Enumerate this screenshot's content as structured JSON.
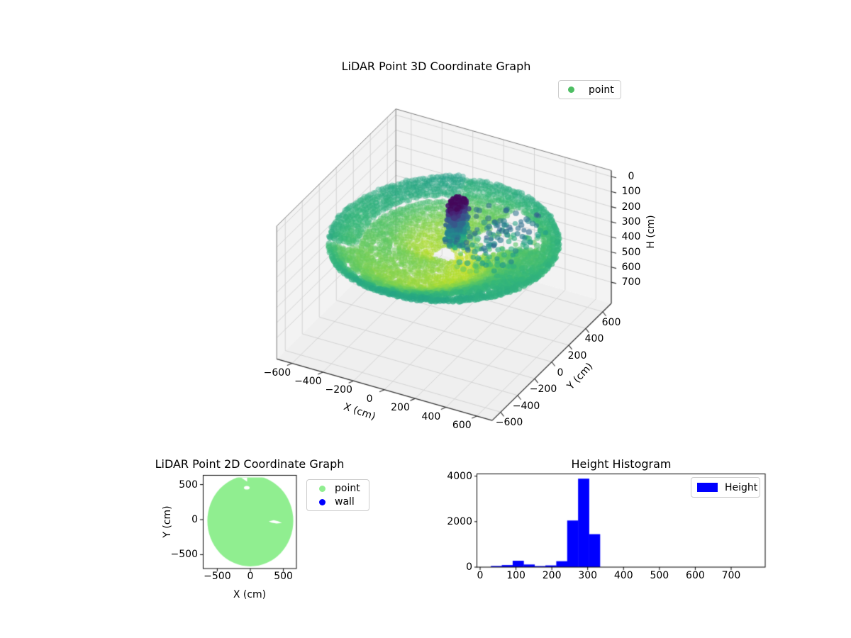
{
  "figure": {
    "background": "#ffffff"
  },
  "chart_data": [
    {
      "type": "scatter",
      "projection": "3d",
      "title": "LiDAR Point 3D Coordinate Graph",
      "xlabel": "X (cm)",
      "ylabel": "Y (cm)",
      "zlabel": "H (cm)",
      "legend": [
        {
          "label": "point",
          "color": "#4dbe63"
        }
      ],
      "colormap": "viridis",
      "h_axis_inverted": true,
      "xlim": [
        -700,
        700
      ],
      "ylim": [
        -700,
        700
      ],
      "zlim_top_to_bottom": [
        -40,
        840
      ],
      "xtick_vals": [
        -600,
        -400,
        -200,
        0,
        200,
        400,
        600
      ],
      "xtick_labels": [
        "−600",
        "−400",
        "−200",
        "0",
        "200",
        "400",
        "600"
      ],
      "ytick_vals": [
        -600,
        -400,
        -200,
        0,
        200,
        400,
        600
      ],
      "ytick_labels": [
        "−600",
        "−400",
        "−200",
        "0",
        "200",
        "400",
        "600"
      ],
      "ztick_vals": [
        0,
        100,
        200,
        300,
        400,
        500,
        600,
        700
      ],
      "ztick_labels": [
        "0",
        "100",
        "200",
        "300",
        "400",
        "500",
        "600",
        "700"
      ],
      "point_cloud": {
        "description": "LiDAR sweep: annular floor disc (radius ≈650 cm, H ≈ 250–345 cm, green→yellow), dark vertical column near origin (H ≈ 5–280 cm, purple/blue), sparse mid-height returns to the +X side, occlusion shadow wedge behind column",
        "color_scale_h": [
          0,
          390
        ],
        "floor": {
          "radius_cm": 650,
          "h_range": [
            250,
            345
          ],
          "rings": 23,
          "shadow_wedge_rad": [
            0.42,
            1.25
          ]
        },
        "column": {
          "x_range": [
            10,
            90
          ],
          "y_range": [
            -15,
            140
          ],
          "h_range": [
            5,
            280
          ]
        },
        "sparse": {
          "x_range": [
            60,
            490
          ],
          "y_range": [
            -170,
            350
          ],
          "h_range": [
            120,
            320
          ],
          "n": 190
        }
      }
    },
    {
      "type": "scatter",
      "title": "LiDAR Point 2D Coordinate Graph",
      "xlabel": "X (cm)",
      "ylabel": "Y (cm)",
      "xlim": [
        -715,
        700
      ],
      "ylim": [
        -700,
        640
      ],
      "xtick_vals": [
        -500,
        0,
        500
      ],
      "xtick_labels": [
        "−500",
        "0",
        "500"
      ],
      "ytick_vals": [
        500,
        0,
        -500
      ],
      "ytick_labels": [
        "500",
        "0",
        "−500"
      ],
      "legend": [
        {
          "label": "point",
          "color": "#90EE90"
        },
        {
          "label": "wall",
          "color": "#0000FF"
        }
      ],
      "blob": {
        "center": [
          0,
          -18
        ],
        "radius": 650,
        "flat_top_y": 602,
        "features": [
          "slanted notch at top-left rim near (-100,590)",
          "pinhole near (-54,455)",
          "thin white sliver near (300..470,-30)",
          "small notch on right rim near (660,170)",
          "small bite near (560,390)"
        ]
      }
    },
    {
      "type": "histogram",
      "title": "Height Histogram",
      "legend": [
        "Height"
      ],
      "bar_color": "#0000ff",
      "bin_start": 30,
      "bin_width": 30.4,
      "counts": [
        50,
        90,
        280,
        115,
        45,
        75,
        260,
        2050,
        3890,
        1450,
        0,
        0,
        0,
        0,
        0,
        0,
        0,
        0,
        0,
        0,
        0,
        0,
        0,
        0
      ],
      "xlim": [
        -9,
        797
      ],
      "ylim": [
        0,
        4085
      ],
      "xtick_vals": [
        0,
        100,
        200,
        300,
        400,
        500,
        600,
        700
      ],
      "xtick_labels": [
        "0",
        "100",
        "200",
        "300",
        "400",
        "500",
        "600",
        "700"
      ],
      "ytick_vals": [
        0,
        2000,
        4000
      ],
      "ytick_labels": [
        "0",
        "2000",
        "4000"
      ]
    }
  ]
}
